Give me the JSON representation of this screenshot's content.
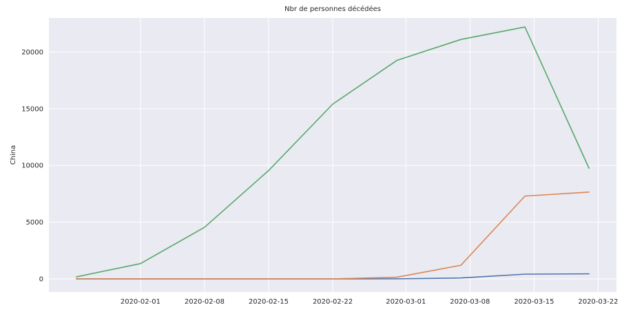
{
  "chart_data": {
    "type": "line",
    "title": "Nbr de personnes décédées",
    "xlabel": "",
    "ylabel": "China",
    "x_dates": [
      "2020-01-25",
      "2020-02-01",
      "2020-02-08",
      "2020-02-15",
      "2020-02-22",
      "2020-02-29",
      "2020-03-07",
      "2020-03-14",
      "2020-03-21"
    ],
    "x_ticks": [
      "2020-02-01",
      "2020-02-08",
      "2020-02-15",
      "2020-02-22",
      "2020-03-01",
      "2020-03-08",
      "2020-03-15",
      "2020-03-22"
    ],
    "xlim": [
      "2020-01-22",
      "2020-03-24"
    ],
    "y_ticks": [
      0,
      5000,
      10000,
      15000,
      20000
    ],
    "ylim": [
      -1150,
      23000
    ],
    "grid": true,
    "series": [
      {
        "color": "#4c72b0",
        "values": [
          0,
          0,
          0,
          0,
          0,
          10,
          80,
          420,
          450
        ]
      },
      {
        "color": "#dd8452",
        "values": [
          0,
          0,
          0,
          0,
          0,
          150,
          1200,
          7300,
          7650
        ]
      },
      {
        "color": "#55a868",
        "values": [
          180,
          1350,
          4550,
          9550,
          15400,
          19250,
          21100,
          22200,
          9750
        ]
      }
    ]
  }
}
